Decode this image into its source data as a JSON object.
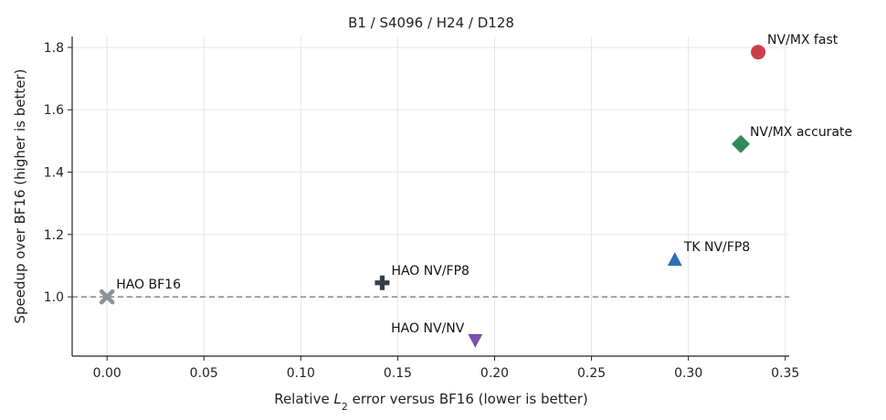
{
  "chart_data": {
    "type": "scatter",
    "title": "B1 / S4096 / H24 / D128",
    "xlabel_prefix": "Relative ",
    "xlabel_symbol": "L",
    "xlabel_subscript": "2",
    "xlabel_suffix": " error versus BF16 (lower is better)",
    "ylabel": "Speedup over BF16 (higher is better)",
    "xlim": [
      -0.018,
      0.352
    ],
    "ylim": [
      0.81,
      1.835
    ],
    "xticks": [
      0.0,
      0.05,
      0.1,
      0.15,
      0.2,
      0.25,
      0.3,
      0.35
    ],
    "xtick_labels": [
      "0.00",
      "0.05",
      "0.10",
      "0.15",
      "0.20",
      "0.25",
      "0.30",
      "0.35"
    ],
    "yticks": [
      1.0,
      1.2,
      1.4,
      1.6,
      1.8
    ],
    "ytick_labels": [
      "1.0",
      "1.2",
      "1.4",
      "1.6",
      "1.8"
    ],
    "grid": true,
    "reference_line": {
      "y": 1.0,
      "style": "dashed",
      "color": "#888888"
    },
    "points": [
      {
        "label": "HAO BF16",
        "x": 0.0,
        "y": 1.0,
        "marker": "x",
        "color": "#8a939c",
        "label_pos": "above-right"
      },
      {
        "label": "HAO NV/FP8",
        "x": 0.142,
        "y": 1.045,
        "marker": "plus",
        "color": "#363e45",
        "label_pos": "above-right"
      },
      {
        "label": "HAO NV/NV",
        "x": 0.19,
        "y": 0.86,
        "marker": "triangle-down",
        "color": "#7b52a8",
        "label_pos": "above-left"
      },
      {
        "label": "TK NV/FP8",
        "x": 0.293,
        "y": 1.12,
        "marker": "triangle-up",
        "color": "#2f6fb5",
        "label_pos": "above-right"
      },
      {
        "label": "NV/MX accurate",
        "x": 0.327,
        "y": 1.49,
        "marker": "diamond",
        "color": "#2e8b57",
        "label_pos": "above-right"
      },
      {
        "label": "NV/MX fast",
        "x": 0.336,
        "y": 1.785,
        "marker": "circle",
        "color": "#cc3f4a",
        "label_pos": "above-right"
      }
    ]
  }
}
